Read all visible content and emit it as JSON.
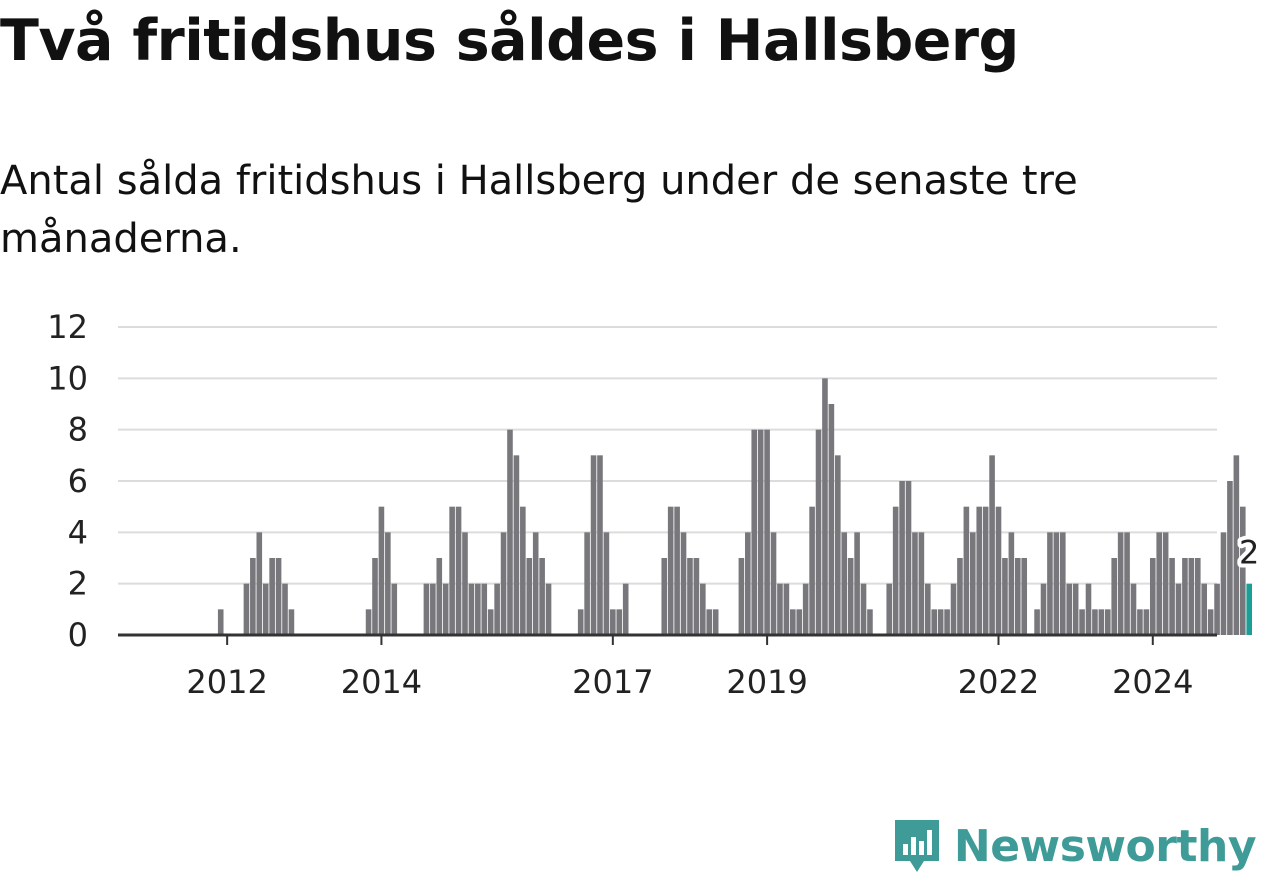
{
  "title": "Två fritidshus såldes i Hallsberg",
  "subtitle": "Antal sålda fritidshus i Hallsberg under de senaste tre månaderna.",
  "brand": {
    "name": "Newsworthy",
    "color": "#3e9b97"
  },
  "colors": {
    "bar": "#78777c",
    "highlight": "#1a9e96",
    "grid": "#dcdcdc",
    "axis": "#333333"
  },
  "chart_data": {
    "type": "bar",
    "title": "",
    "xlabel": "",
    "ylabel": "",
    "ylim": [
      0,
      12
    ],
    "yticks": [
      0,
      2,
      4,
      6,
      8,
      10,
      12
    ],
    "grid": true,
    "x_range": [
      "2011-04",
      "2025-08"
    ],
    "xticks": [
      {
        "label": "2012",
        "month": "2012-01"
      },
      {
        "label": "2014",
        "month": "2014-01"
      },
      {
        "label": "2017",
        "month": "2017-01"
      },
      {
        "label": "2019",
        "month": "2019-01"
      },
      {
        "label": "2022",
        "month": "2022-01"
      },
      {
        "label": "2024",
        "month": "2024-01"
      }
    ],
    "highlight_label": "2",
    "series": [
      {
        "start_month": "2011-04",
        "values": [
          0,
          0,
          0,
          0,
          0,
          0,
          0,
          0,
          1,
          0,
          0,
          0,
          2,
          3,
          4,
          2,
          3,
          3,
          2,
          1,
          0,
          0,
          0,
          0,
          0,
          0,
          0,
          0,
          0,
          0,
          0,
          1,
          3,
          5,
          4,
          2,
          0,
          0,
          0,
          0,
          2,
          2,
          3,
          2,
          5,
          5,
          4,
          2,
          2,
          2,
          1,
          2,
          4,
          8,
          7,
          5,
          3,
          4,
          3,
          2,
          0,
          0,
          0,
          0,
          1,
          4,
          7,
          7,
          4,
          1,
          1,
          2,
          0,
          0,
          0,
          0,
          0,
          3,
          5,
          5,
          4,
          3,
          3,
          2,
          1,
          1,
          0,
          0,
          0,
          3,
          4,
          8,
          8,
          8,
          4,
          2,
          2,
          1,
          1,
          2,
          5,
          8,
          10,
          9,
          7,
          4,
          3,
          4,
          2,
          1,
          0,
          0,
          2,
          5,
          6,
          6,
          4,
          4,
          2,
          1,
          1,
          1,
          2,
          3,
          5,
          4,
          5,
          5,
          7,
          5,
          3,
          4,
          3,
          3,
          0,
          1,
          2,
          4,
          4,
          4,
          2,
          2,
          1,
          2,
          1,
          1,
          1,
          3,
          4,
          4,
          2,
          1,
          1,
          3,
          4,
          4,
          3,
          2,
          3,
          3,
          3,
          2,
          1,
          2,
          4,
          6,
          7,
          5,
          2
        ]
      }
    ]
  }
}
